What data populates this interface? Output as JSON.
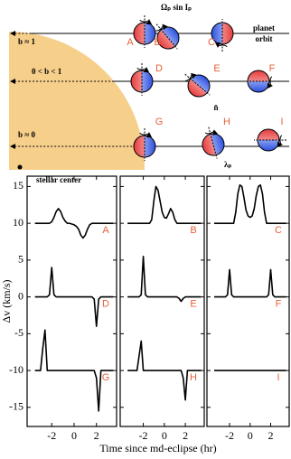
{
  "diagram": {
    "rows": [
      "b ≈ 1",
      "0 < b < 1",
      "b ≈ 0"
    ],
    "stellar_center": "stellar center",
    "orbit_label": [
      "planet",
      "orbit"
    ],
    "spin_label": "Ωₚ sin Iₚ",
    "normal_label": "n̂",
    "angle_label": "λₚ",
    "planets": [
      "A",
      "B",
      "C",
      "D",
      "E",
      "F",
      "G",
      "H",
      "I"
    ]
  },
  "chart_data": [
    {
      "type": "line",
      "ylabel": "Δv (km/s)",
      "x": [
        -3.5,
        -3,
        -2.8,
        -2.6,
        -2.4,
        -2.2,
        -2,
        -1.8,
        -1.6,
        -1.4,
        -1.2,
        -1,
        -0.8,
        -0.6,
        -0.4,
        -0.2,
        0,
        0.2,
        0.4,
        0.6,
        0.8,
        1,
        1.2,
        1.4,
        1.6,
        1.8,
        2,
        2.2,
        2.4,
        2.6,
        2.8,
        3,
        3.5
      ],
      "xlim": [
        -4.2,
        3.8
      ],
      "xticks": [
        -2,
        0,
        2
      ],
      "ylim": [
        -17.6,
        16.4
      ],
      "yticks": [
        -15,
        -10,
        -5,
        0,
        5,
        10,
        15
      ],
      "series": [
        {
          "name": "A",
          "color": "#000000",
          "values": [
            10,
            10,
            10,
            10,
            10,
            10,
            10.2,
            10.8,
            11.6,
            12,
            11.6,
            10.8,
            10.3,
            10,
            10,
            9.9,
            9.8,
            9.6,
            9.2,
            8.4,
            8,
            8.4,
            9.2,
            9.8,
            10,
            10,
            10,
            10,
            10,
            10,
            10,
            10,
            10
          ]
        },
        {
          "name": "D",
          "color": "#000000",
          "values": [
            0,
            0,
            0,
            0,
            0,
            0.3,
            4,
            0.3,
            0,
            0,
            0,
            0,
            0,
            0,
            0,
            0,
            0,
            0,
            0,
            0,
            0,
            0,
            0,
            0,
            0,
            -0.3,
            -4,
            -0.3,
            0,
            0,
            0,
            0,
            0
          ]
        },
        {
          "name": "G",
          "color": "#000000",
          "values": [
            -10,
            -10,
            -7,
            -4.5,
            -10,
            -10,
            -10,
            -10,
            -10,
            -10,
            -10,
            -10,
            -10,
            -10,
            -10,
            -10,
            -10,
            -10,
            -10,
            -10,
            -10,
            -10,
            -10,
            -10,
            -10,
            -10,
            -11,
            -15.5,
            -10,
            -10,
            -10,
            -10,
            -10
          ]
        }
      ]
    },
    {
      "type": "line",
      "xlabel": "Time since md-eclipse (hr)",
      "x": [
        -3.5,
        -3,
        -2.8,
        -2.6,
        -2.4,
        -2.2,
        -2,
        -1.8,
        -1.6,
        -1.4,
        -1.2,
        -1,
        -0.8,
        -0.6,
        -0.4,
        -0.2,
        0,
        0.2,
        0.4,
        0.6,
        0.8,
        1,
        1.2,
        1.4,
        1.6,
        1.8,
        2,
        2.2,
        2.4,
        2.6,
        2.8,
        3,
        3.5
      ],
      "xlim": [
        -4.2,
        3.8
      ],
      "xticks": [
        -2,
        0,
        2
      ],
      "ylim": [
        -17.6,
        16.4
      ],
      "series": [
        {
          "name": "B",
          "color": "#000000",
          "values": [
            10,
            10,
            10,
            10,
            10,
            10,
            10,
            10,
            10,
            10,
            10.5,
            13,
            15,
            14.5,
            13,
            11.5,
            10.8,
            10.7,
            11.3,
            12,
            11.5,
            10.5,
            10,
            10,
            10,
            10,
            10,
            10,
            10,
            10,
            10,
            10,
            10
          ]
        },
        {
          "name": "E",
          "color": "#000000",
          "values": [
            0,
            0,
            0,
            0,
            0,
            0.3,
            5.5,
            0.3,
            0,
            0,
            0,
            0,
            0,
            0,
            0,
            0,
            0,
            0,
            0,
            0,
            0,
            0,
            0,
            -0.2,
            -0.6,
            -0.2,
            0,
            0,
            0,
            0,
            0,
            0,
            0
          ]
        },
        {
          "name": "H",
          "color": "#000000",
          "values": [
            -10,
            -10,
            -10,
            -10,
            -8,
            -6,
            -10,
            -10,
            -10,
            -10,
            -10,
            -10,
            -10,
            -10,
            -10,
            -10,
            -10,
            -10,
            -10,
            -10,
            -10,
            -10,
            -10,
            -10,
            -10,
            -11,
            -14,
            -10,
            -10,
            -10,
            -10,
            -10,
            -10
          ]
        }
      ]
    },
    {
      "type": "line",
      "x": [
        -3.5,
        -3,
        -2.8,
        -2.6,
        -2.4,
        -2.2,
        -2,
        -1.8,
        -1.6,
        -1.4,
        -1.2,
        -1,
        -0.8,
        -0.6,
        -0.4,
        -0.2,
        0,
        0.2,
        0.4,
        0.6,
        0.8,
        1,
        1.2,
        1.4,
        1.6,
        1.8,
        2,
        2.2,
        2.4,
        2.6,
        2.8,
        3,
        3.5
      ],
      "xlim": [
        -4.2,
        3.8
      ],
      "xticks": [
        -2,
        0,
        2
      ],
      "ylim": [
        -17.6,
        16.4
      ],
      "series": [
        {
          "name": "C",
          "color": "#000000",
          "values": [
            10,
            10,
            10,
            10,
            10,
            10,
            10,
            10,
            10,
            11.5,
            14,
            15.2,
            15,
            13.5,
            11.8,
            11,
            10.8,
            11,
            12,
            13.8,
            15,
            15.2,
            14,
            11.5,
            10,
            10,
            10,
            10,
            10,
            10,
            10,
            10,
            10
          ]
        },
        {
          "name": "F",
          "color": "#000000",
          "values": [
            0,
            0,
            0,
            0,
            0,
            0.3,
            3.7,
            0.3,
            0,
            0,
            0,
            0,
            0,
            0,
            0,
            0,
            0,
            0,
            0,
            0,
            0,
            0,
            0,
            0,
            0,
            0.3,
            3.7,
            0.3,
            0,
            0,
            0,
            0,
            0
          ]
        },
        {
          "name": "I",
          "color": "#000000",
          "values": [
            -10,
            -10,
            -10,
            -10,
            -10,
            -10,
            -10,
            -10,
            -10,
            -10,
            -10,
            -10,
            -10,
            -10,
            -10,
            -10,
            -10,
            -10,
            -10,
            -10,
            -10,
            -10,
            -10,
            -10,
            -10,
            -10,
            -10,
            -10,
            -10,
            -10,
            -10,
            -10,
            -10
          ]
        }
      ]
    }
  ]
}
